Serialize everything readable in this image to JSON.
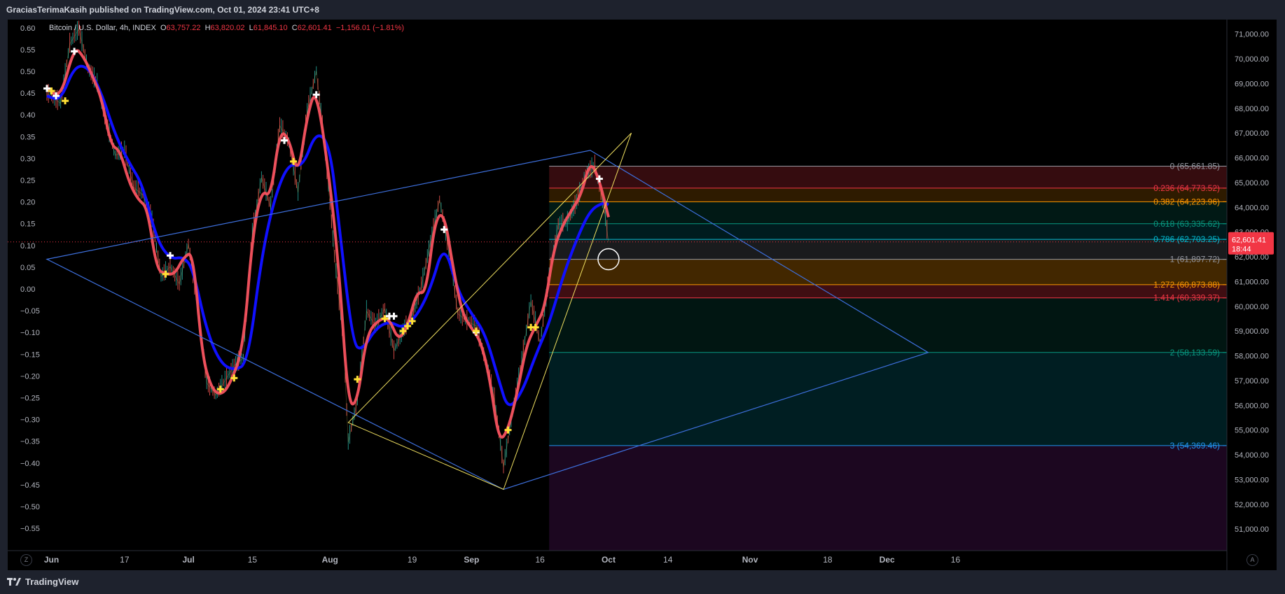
{
  "header": {
    "published": "GraciasTerimaKasih published on TradingView.com, Oct 01, 2024 23:41 UTC+8"
  },
  "footer": {
    "brand": "TradingView"
  },
  "symbol": {
    "name": "Bitcoin / U.S. Dollar, 4h, INDEX",
    "open_label": "O",
    "open": "63,757.22",
    "high_label": "H",
    "high": "63,820.02",
    "low_label": "L",
    "low": "61,845.10",
    "close_label": "C",
    "close": "62,601.41",
    "change": "−1,156.01 (−1.81%)"
  },
  "price_tag": {
    "value": "62,601.41",
    "countdown": "18:44"
  },
  "buttons": {
    "left": "Z",
    "right": "A"
  },
  "colors": {
    "background": "#000000",
    "ema_fast": "#f7525f",
    "ema_slow": "#1010ff",
    "channel": "#3d6fdc",
    "wedge": "#f0e060",
    "bull_candle": "#26a69a",
    "bear_candle": "#ef5350",
    "price_tag": "#f23645"
  },
  "chart_data": {
    "type": "line",
    "title": "Bitcoin / U.S. Dollar, 4h, INDEX",
    "x_axis": {
      "type": "time",
      "tick_labels": [
        "Jun",
        "17",
        "Jul",
        "15",
        "Aug",
        "19",
        "Sep",
        "16",
        "Oct",
        "14",
        "Nov",
        "18",
        "Dec",
        "16"
      ],
      "tick_dates": [
        "2024-06-01",
        "2024-06-17",
        "2024-07-01",
        "2024-07-15",
        "2024-08-01",
        "2024-08-19",
        "2024-09-01",
        "2024-09-16",
        "2024-10-01",
        "2024-10-14",
        "2024-11-01",
        "2024-11-18",
        "2024-12-01",
        "2024-12-16"
      ]
    },
    "y_axis_right": {
      "unit": "USD",
      "ticks": [
        "71,000.00",
        "70,000.00",
        "69,000.00",
        "68,000.00",
        "67,000.00",
        "66,000.00",
        "65,000.00",
        "64,000.00",
        "63,000.00",
        "62,000.00",
        "61,000.00",
        "60,000.00",
        "59,000.00",
        "58,000.00",
        "57,000.00",
        "56,000.00",
        "55,000.00",
        "54,000.00",
        "53,000.00",
        "52,000.00",
        "51,000.00"
      ],
      "range": [
        50500,
        71600
      ]
    },
    "y_axis_left": {
      "ticks": [
        "0.60",
        "0.55",
        "0.50",
        "0.45",
        "0.40",
        "0.35",
        "0.30",
        "0.25",
        "0.20",
        "0.15",
        "0.10",
        "0.05",
        "0.00",
        "−0.05",
        "−0.10",
        "−0.15",
        "−0.20",
        "−0.25",
        "−0.30",
        "−0.35",
        "−0.40",
        "−0.45",
        "−0.50",
        "−0.55"
      ],
      "range": [
        -0.6,
        0.61
      ]
    },
    "series": [
      {
        "name": "",
        "style": "line",
        "points": [
          [
            "2024-05-31",
            68800
          ],
          [
            "2024-06-03",
            68400
          ],
          [
            "2024-06-06",
            70500
          ],
          [
            "2024-06-08",
            70100
          ],
          [
            "2024-06-10",
            69300
          ],
          [
            "2024-06-12",
            68400
          ],
          [
            "2024-06-14",
            66500
          ],
          [
            "2024-06-16",
            66300
          ],
          [
            "2024-06-18",
            65000
          ],
          [
            "2024-06-20",
            64300
          ],
          [
            "2024-06-22",
            64000
          ],
          [
            "2024-06-24",
            61500
          ],
          [
            "2024-06-26",
            61300
          ],
          [
            "2024-06-28",
            61300
          ],
          [
            "2024-06-30",
            62000
          ],
          [
            "2024-07-02",
            62200
          ],
          [
            "2024-07-04",
            58000
          ],
          [
            "2024-07-06",
            56700
          ],
          [
            "2024-07-08",
            56400
          ],
          [
            "2024-07-10",
            56800
          ],
          [
            "2024-07-13",
            58300
          ],
          [
            "2024-07-15",
            62800
          ],
          [
            "2024-07-17",
            64700
          ],
          [
            "2024-07-19",
            64400
          ],
          [
            "2024-07-21",
            67100
          ],
          [
            "2024-07-23",
            66800
          ],
          [
            "2024-07-25",
            65200
          ],
          [
            "2024-07-27",
            67700
          ],
          [
            "2024-07-29",
            68900
          ],
          [
            "2024-08-01",
            65000
          ],
          [
            "2024-08-03",
            61400
          ],
          [
            "2024-08-05",
            56000
          ],
          [
            "2024-08-07",
            56100
          ],
          [
            "2024-08-09",
            58900
          ],
          [
            "2024-08-12",
            59500
          ],
          [
            "2024-08-14",
            59500
          ],
          [
            "2024-08-16",
            58600
          ],
          [
            "2024-08-18",
            59200
          ],
          [
            "2024-08-20",
            60600
          ],
          [
            "2024-08-22",
            60500
          ],
          [
            "2024-08-24",
            63500
          ],
          [
            "2024-08-26",
            63800
          ],
          [
            "2024-08-28",
            61500
          ],
          [
            "2024-08-30",
            59700
          ],
          [
            "2024-09-01",
            59100
          ],
          [
            "2024-09-03",
            58600
          ],
          [
            "2024-09-05",
            57100
          ],
          [
            "2024-09-07",
            54500
          ],
          [
            "2024-09-09",
            55000
          ],
          [
            "2024-09-11",
            56500
          ],
          [
            "2024-09-13",
            58400
          ],
          [
            "2024-09-15",
            59200
          ],
          [
            "2024-09-17",
            59900
          ],
          [
            "2024-09-19",
            62300
          ],
          [
            "2024-09-21",
            63300
          ],
          [
            "2024-09-23",
            63900
          ],
          [
            "2024-09-25",
            64500
          ],
          [
            "2024-09-27",
            65900
          ],
          [
            "2024-09-29",
            65100
          ],
          [
            "2024-10-01",
            63600
          ]
        ]
      },
      {
        "name": "",
        "style": "line",
        "points": [
          [
            "2024-05-31",
            68500
          ],
          [
            "2024-06-03",
            68300
          ],
          [
            "2024-06-06",
            69700
          ],
          [
            "2024-06-09",
            69700
          ],
          [
            "2024-06-12",
            68600
          ],
          [
            "2024-06-15",
            66900
          ],
          [
            "2024-06-18",
            65800
          ],
          [
            "2024-06-21",
            64900
          ],
          [
            "2024-06-24",
            62700
          ],
          [
            "2024-06-27",
            61900
          ],
          [
            "2024-06-30",
            62000
          ],
          [
            "2024-07-02",
            61500
          ],
          [
            "2024-07-05",
            59000
          ],
          [
            "2024-07-08",
            57700
          ],
          [
            "2024-07-11",
            57400
          ],
          [
            "2024-07-14",
            57700
          ],
          [
            "2024-07-17",
            62000
          ],
          [
            "2024-07-20",
            64500
          ],
          [
            "2024-07-23",
            65800
          ],
          [
            "2024-07-26",
            65600
          ],
          [
            "2024-07-29",
            67100
          ],
          [
            "2024-08-01",
            66500
          ],
          [
            "2024-08-03",
            63200
          ],
          [
            "2024-08-06",
            58500
          ],
          [
            "2024-08-08",
            58200
          ],
          [
            "2024-08-11",
            59100
          ],
          [
            "2024-08-14",
            59400
          ],
          [
            "2024-08-17",
            59100
          ],
          [
            "2024-08-20",
            59600
          ],
          [
            "2024-08-23",
            60700
          ],
          [
            "2024-08-26",
            62600
          ],
          [
            "2024-08-29",
            60600
          ],
          [
            "2024-09-01",
            59700
          ],
          [
            "2024-09-04",
            58900
          ],
          [
            "2024-09-07",
            57000
          ],
          [
            "2024-09-09",
            55800
          ],
          [
            "2024-09-12",
            56500
          ],
          [
            "2024-09-15",
            58000
          ],
          [
            "2024-09-18",
            59300
          ],
          [
            "2024-09-21",
            61200
          ],
          [
            "2024-09-24",
            62700
          ],
          [
            "2024-09-27",
            63900
          ],
          [
            "2024-09-30",
            64200
          ],
          [
            "2024-10-01",
            64100
          ]
        ]
      },
      {
        "name": "",
        "style": "line",
        "points": [
          [
            "2024-05-31",
            68600
          ],
          [
            "2024-06-03",
            68200
          ],
          [
            "2024-06-05",
            70600
          ],
          [
            "2024-06-07",
            71200
          ],
          [
            "2024-06-09",
            69600
          ],
          [
            "2024-06-11",
            69000
          ],
          [
            "2024-06-13",
            67400
          ],
          [
            "2024-06-15",
            66100
          ],
          [
            "2024-06-17",
            66300
          ],
          [
            "2024-06-19",
            64800
          ],
          [
            "2024-06-21",
            64500
          ],
          [
            "2024-06-23",
            63500
          ],
          [
            "2024-06-25",
            61200
          ],
          [
            "2024-06-27",
            61600
          ],
          [
            "2024-06-29",
            60900
          ],
          [
            "2024-07-01",
            62500
          ],
          [
            "2024-07-03",
            60000
          ],
          [
            "2024-07-05",
            56900
          ],
          [
            "2024-07-07",
            56400
          ],
          [
            "2024-07-09",
            57000
          ],
          [
            "2024-07-11",
            57600
          ],
          [
            "2024-07-13",
            57900
          ],
          [
            "2024-07-15",
            63000
          ],
          [
            "2024-07-17",
            65200
          ],
          [
            "2024-07-19",
            64000
          ],
          [
            "2024-07-21",
            67300
          ],
          [
            "2024-07-23",
            66600
          ],
          [
            "2024-07-25",
            64600
          ],
          [
            "2024-07-27",
            67900
          ],
          [
            "2024-07-29",
            69500
          ],
          [
            "2024-07-31",
            66200
          ],
          [
            "2024-08-02",
            62000
          ],
          [
            "2024-08-04",
            58400
          ],
          [
            "2024-08-05",
            54500
          ],
          [
            "2024-08-07",
            56200
          ],
          [
            "2024-08-09",
            59800
          ],
          [
            "2024-08-11",
            59200
          ],
          [
            "2024-08-13",
            59900
          ],
          [
            "2024-08-15",
            58200
          ],
          [
            "2024-08-17",
            59000
          ],
          [
            "2024-08-19",
            59600
          ],
          [
            "2024-08-21",
            60800
          ],
          [
            "2024-08-23",
            62600
          ],
          [
            "2024-08-25",
            64300
          ],
          [
            "2024-08-27",
            62300
          ],
          [
            "2024-08-29",
            59700
          ],
          [
            "2024-08-31",
            59400
          ],
          [
            "2024-09-02",
            59200
          ],
          [
            "2024-09-04",
            57800
          ],
          [
            "2024-09-06",
            56300
          ],
          [
            "2024-09-08",
            53500
          ],
          [
            "2024-09-10",
            55700
          ],
          [
            "2024-09-12",
            57800
          ],
          [
            "2024-09-14",
            60200
          ],
          [
            "2024-09-16",
            58500
          ],
          [
            "2024-09-18",
            61200
          ],
          [
            "2024-09-20",
            63300
          ],
          [
            "2024-09-22",
            63400
          ],
          [
            "2024-09-24",
            64200
          ],
          [
            "2024-09-26",
            65300
          ],
          [
            "2024-09-28",
            65700
          ],
          [
            "2024-09-30",
            64000
          ],
          [
            "2024-10-01",
            62601
          ]
        ]
      }
    ],
    "last_price": 62601.41,
    "fibonacci": {
      "start_date": "2024-09-18",
      "levels": [
        {
          "ratio": "0",
          "price": 65661.85,
          "label": "0 (65,661.85)",
          "color": "#9598a1",
          "fill": "rgba(242,54,69,0.22)"
        },
        {
          "ratio": "0.236",
          "price": 64773.52,
          "label": "0.236 (64,773.52)",
          "color": "#f23645",
          "fill": "rgba(255,152,0,0.18)"
        },
        {
          "ratio": "0.382",
          "price": 64223.96,
          "label": "0.382 (64,223.96)",
          "color": "#ff9800",
          "fill": "rgba(8,153,129,0.16)"
        },
        {
          "ratio": "0.618",
          "price": 63335.62,
          "label": "0.618 (63,335.62)",
          "color": "#089981",
          "fill": "rgba(0,188,212,0.14)"
        },
        {
          "ratio": "0.786",
          "price": 62703.25,
          "label": "0.786 (62,703.25)",
          "color": "#00bcd4",
          "fill": "rgba(120,123,134,0.22)"
        },
        {
          "ratio": "1",
          "price": 61897.72,
          "label": "1 (61,897.72)",
          "color": "#9598a1",
          "fill": "rgba(255,152,0,0.26)"
        },
        {
          "ratio": "1.272",
          "price": 60873.88,
          "label": "1.272 (60,873.88)",
          "color": "#ff9800",
          "fill": "rgba(242,54,69,0.26)"
        },
        {
          "ratio": "1.414",
          "price": 60339.37,
          "label": "1.414 (60,339.37)",
          "color": "#f23645",
          "fill": "rgba(8,153,129,0.14)"
        },
        {
          "ratio": "2",
          "price": 58133.59,
          "label": "2 (58,133.59)",
          "color": "#089981",
          "fill": "rgba(0,188,212,0.16)"
        },
        {
          "ratio": "3",
          "price": 54369.46,
          "label": "3 (54,369.46)",
          "color": "#2196f3",
          "fill": "rgba(156,39,176,0.18)"
        }
      ]
    },
    "drawings": {
      "channel": [
        [
          "2024-05-31",
          61900
        ],
        [
          "2024-09-27",
          66300
        ],
        [
          "2024-12-10",
          58133
        ],
        [
          "2024-09-08",
          52600
        ]
      ],
      "channel_close": [
        [
          "2024-05-31",
          61900
        ],
        [
          "2024-09-08",
          52600
        ]
      ],
      "wedge": [
        [
          "2024-08-05",
          55300
        ],
        [
          "2024-10-06",
          67000
        ],
        [
          "2024-09-08",
          52600
        ]
      ],
      "circle": {
        "date": "2024-10-01",
        "price": 61900
      }
    },
    "markers": {
      "white": [
        [
          "2024-05-31",
          68800
        ],
        [
          "2024-06-02",
          68500
        ],
        [
          "2024-06-06",
          70300
        ],
        [
          "2024-06-27",
          62050
        ],
        [
          "2024-07-22",
          66700
        ],
        [
          "2024-07-29",
          68550
        ],
        [
          "2024-08-14",
          59600
        ],
        [
          "2024-08-15",
          59600
        ],
        [
          "2024-08-26",
          63100
        ],
        [
          "2024-09-02",
          58950
        ],
        [
          "2024-09-29",
          65150
        ]
      ],
      "yellow": [
        [
          "2024-06-01",
          68700
        ],
        [
          "2024-06-04",
          68300
        ],
        [
          "2024-06-26",
          61300
        ],
        [
          "2024-07-08",
          56650
        ],
        [
          "2024-07-11",
          57100
        ],
        [
          "2024-07-24",
          65850
        ],
        [
          "2024-08-07",
          57050
        ],
        [
          "2024-08-13",
          59500
        ],
        [
          "2024-08-17",
          59000
        ],
        [
          "2024-08-18",
          59200
        ],
        [
          "2024-08-19",
          59400
        ],
        [
          "2024-09-02",
          59000
        ],
        [
          "2024-09-09",
          55000
        ],
        [
          "2024-09-14",
          59150
        ],
        [
          "2024-09-15",
          59150
        ]
      ]
    }
  }
}
